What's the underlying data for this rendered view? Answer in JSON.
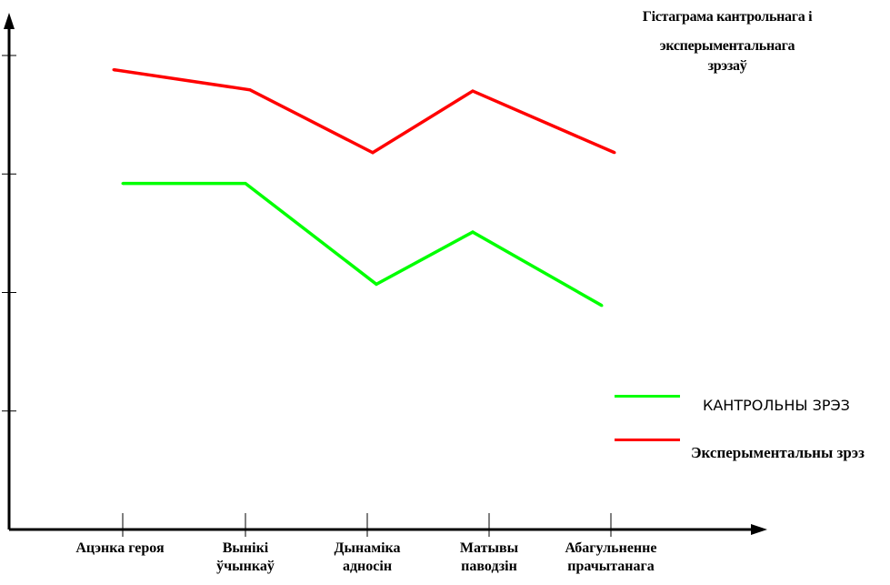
{
  "chart_data": {
    "type": "line",
    "title_lines": [
      "Гістаграма кантрольнага і",
      "эксперыментальнага",
      "зрэзаў"
    ],
    "categories": [
      [
        "Ацэнка героя"
      ],
      [
        "Вынікі",
        "ўчынкаў"
      ],
      [
        "Дынаміка",
        "адносін"
      ],
      [
        "Матывы",
        "паводзін"
      ],
      [
        "Абагульненне",
        "прачытанага"
      ]
    ],
    "series": [
      {
        "name": "КАНТРОЛЬНЫ ЗРЭЗ",
        "color": "#00ff00",
        "values": [
          2.92,
          2.92,
          2.07,
          2.51,
          1.89
        ]
      },
      {
        "name": "Эксперыментальны зрэз",
        "color": "#ff0000",
        "values": [
          3.88,
          3.71,
          3.18,
          3.7,
          3.18
        ]
      }
    ],
    "ylim": [
      0,
      4.33
    ],
    "ytick_count": 4,
    "grid": false,
    "legend_position": "right"
  }
}
